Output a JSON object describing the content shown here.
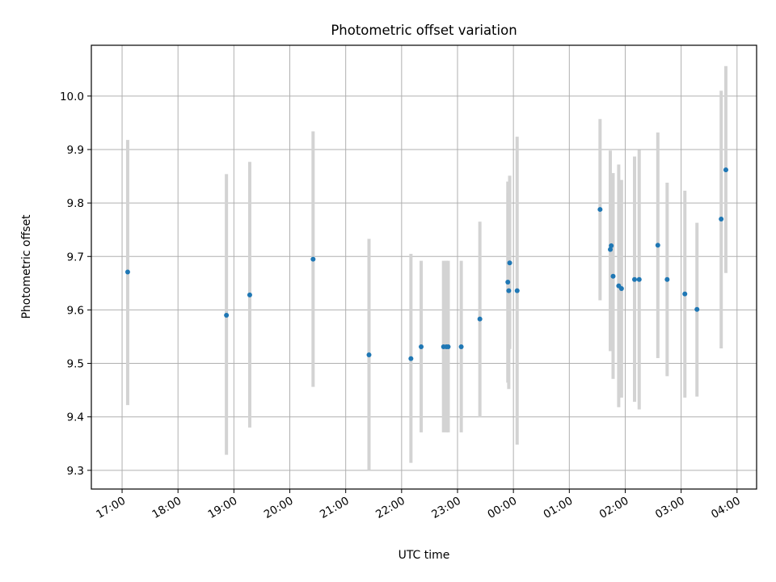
{
  "chart_data": {
    "type": "scatter",
    "title": "Photometric offset variation",
    "xlabel": "UTC time",
    "ylabel": "Photometric offset",
    "x_ticks": [
      "17:00",
      "18:00",
      "19:00",
      "20:00",
      "21:00",
      "22:00",
      "23:00",
      "00:00",
      "01:00",
      "02:00",
      "03:00",
      "04:00"
    ],
    "y_ticks": [
      "9.3",
      "9.4",
      "9.5",
      "9.6",
      "9.7",
      "9.8",
      "9.9",
      "10.0"
    ],
    "x_unit": "hours since 17:00 UTC",
    "xlim": [
      -0.55,
      11.35
    ],
    "ylim": [
      9.265,
      10.095
    ],
    "grid": true,
    "marker_color": "#1f77b4",
    "errorbar_color": "#d3d3d3",
    "points": [
      {
        "time": "16:58",
        "y": 9.655,
        "low": 9.443,
        "high": 9.866
      },
      {
        "time": "17:06",
        "y": 9.671,
        "low": 9.422,
        "high": 9.918
      },
      {
        "time": "18:52",
        "y": 9.59,
        "low": 9.329,
        "high": 9.854
      },
      {
        "time": "19:17",
        "y": 9.628,
        "low": 9.38,
        "high": 9.877
      },
      {
        "time": "20:25",
        "y": 9.695,
        "low": 9.456,
        "high": 9.934
      },
      {
        "time": "21:25",
        "y": 9.516,
        "low": 9.3,
        "high": 9.733
      },
      {
        "time": "22:10",
        "y": 9.509,
        "low": 9.314,
        "high": 9.705
      },
      {
        "time": "22:21",
        "y": 9.531,
        "low": 9.371,
        "high": 9.692
      },
      {
        "time": "22:45",
        "y": 9.531,
        "low": 9.371,
        "high": 9.692
      },
      {
        "time": "22:48",
        "y": 9.531,
        "low": 9.371,
        "high": 9.692
      },
      {
        "time": "22:50",
        "y": 9.531,
        "low": 9.371,
        "high": 9.692
      },
      {
        "time": "23:04",
        "y": 9.531,
        "low": 9.371,
        "high": 9.692
      },
      {
        "time": "23:24",
        "y": 9.583,
        "low": 9.399,
        "high": 9.765
      },
      {
        "time": "23:54",
        "y": 9.652,
        "low": 9.464,
        "high": 9.84
      },
      {
        "time": "23:55",
        "y": 9.636,
        "low": 9.452,
        "high": 9.818
      },
      {
        "time": "23:56",
        "y": 9.688,
        "low": 9.527,
        "high": 9.851
      },
      {
        "time": "00:04",
        "y": 9.636,
        "low": 9.348,
        "high": 9.924
      },
      {
        "time": "01:33",
        "y": 9.788,
        "low": 9.618,
        "high": 9.957
      },
      {
        "time": "01:44",
        "y": 9.713,
        "low": 9.523,
        "high": 9.898
      },
      {
        "time": "01:45",
        "y": 9.72,
        "low": 9.541,
        "high": 9.851
      },
      {
        "time": "01:47",
        "y": 9.663,
        "low": 9.471,
        "high": 9.856
      },
      {
        "time": "01:53",
        "y": 9.645,
        "low": 9.418,
        "high": 9.872
      },
      {
        "time": "01:56",
        "y": 9.64,
        "low": 9.436,
        "high": 9.843
      },
      {
        "time": "02:10",
        "y": 9.657,
        "low": 9.428,
        "high": 9.887
      },
      {
        "time": "02:15",
        "y": 9.657,
        "low": 9.414,
        "high": 9.899
      },
      {
        "time": "02:35",
        "y": 9.721,
        "low": 9.51,
        "high": 9.932
      },
      {
        "time": "02:45",
        "y": 9.657,
        "low": 9.476,
        "high": 9.838
      },
      {
        "time": "03:04",
        "y": 9.63,
        "low": 9.436,
        "high": 9.823
      },
      {
        "time": "03:17",
        "y": 9.601,
        "low": 9.438,
        "high": 9.763
      },
      {
        "time": "03:43",
        "y": 9.77,
        "low": 9.528,
        "high": 10.01
      },
      {
        "time": "03:48",
        "y": 9.862,
        "low": 9.669,
        "high": 10.056
      }
    ]
  }
}
